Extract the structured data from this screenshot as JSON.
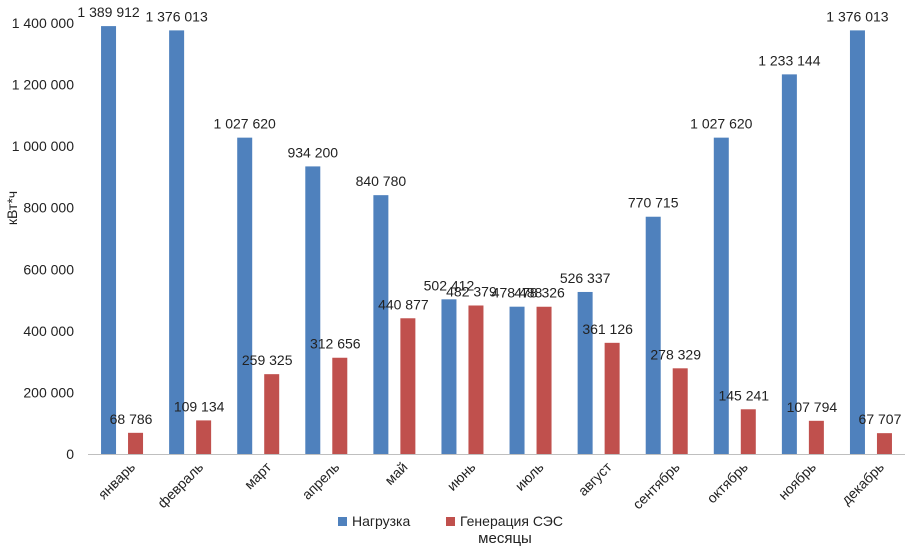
{
  "chart_data": {
    "type": "bar",
    "title": "",
    "xlabel": "месяцы",
    "ylabel": "кВт*ч",
    "ylim": [
      0,
      1400000
    ],
    "yticks": [
      {
        "value": 0,
        "label": "0"
      },
      {
        "value": 200000,
        "label": "200 000"
      },
      {
        "value": 400000,
        "label": "400 000"
      },
      {
        "value": 600000,
        "label": "600 000"
      },
      {
        "value": 800000,
        "label": "800 000"
      },
      {
        "value": 1000000,
        "label": "1 000 000"
      },
      {
        "value": 1200000,
        "label": "1 200 000"
      },
      {
        "value": 1400000,
        "label": "1 400 000"
      }
    ],
    "grid": false,
    "legend_position": "bottom",
    "categories": [
      "январь",
      "февраль",
      "март",
      "апрель",
      "май",
      "июнь",
      "июль",
      "август",
      "сентябрь",
      "октябрь",
      "ноябрь",
      "декабрь"
    ],
    "series": [
      {
        "name": "Нагрузка",
        "color": "#4f81bd",
        "values": [
          1389912,
          1376013,
          1027620,
          934200,
          840780,
          502412,
          478488,
          526337,
          770715,
          1027620,
          1233144,
          1376013
        ],
        "labels": [
          "1 389 912",
          "1 376 013",
          "1 027 620",
          "934 200",
          "840 780",
          "502 412",
          "478 488",
          "526 337",
          "770 715",
          "1 027 620",
          "1 233 144",
          "1 376 013"
        ]
      },
      {
        "name": "Генерация СЭС",
        "color": "#c0504d",
        "values": [
          68786,
          109134,
          259325,
          312656,
          440877,
          482379,
          478326,
          361126,
          278329,
          145241,
          107794,
          67707
        ],
        "labels": [
          "68 786",
          "109 134",
          "259 325",
          "312 656",
          "440 877",
          "482 379",
          "478 326",
          "361 126",
          "278 329",
          "145 241",
          "107 794",
          "67 707"
        ]
      }
    ]
  }
}
